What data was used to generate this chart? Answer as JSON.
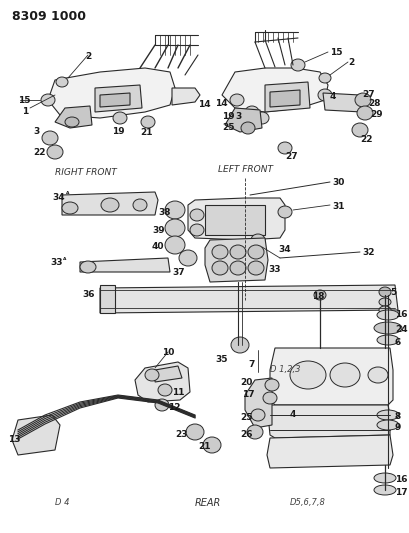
{
  "title": "8309 1000",
  "bg": "#f5f5f0",
  "lc": "#2a2a2a",
  "tc": "#1a1a1a",
  "figsize": [
    4.1,
    5.33
  ],
  "dpi": 100,
  "labels": {
    "right_front": "RIGHT FRONT",
    "left_front": "LEFT FRONT",
    "rear": "REAR",
    "d123": "D 1,2,3",
    "d4": "D 4",
    "d5678": "D5,6,7,8"
  }
}
